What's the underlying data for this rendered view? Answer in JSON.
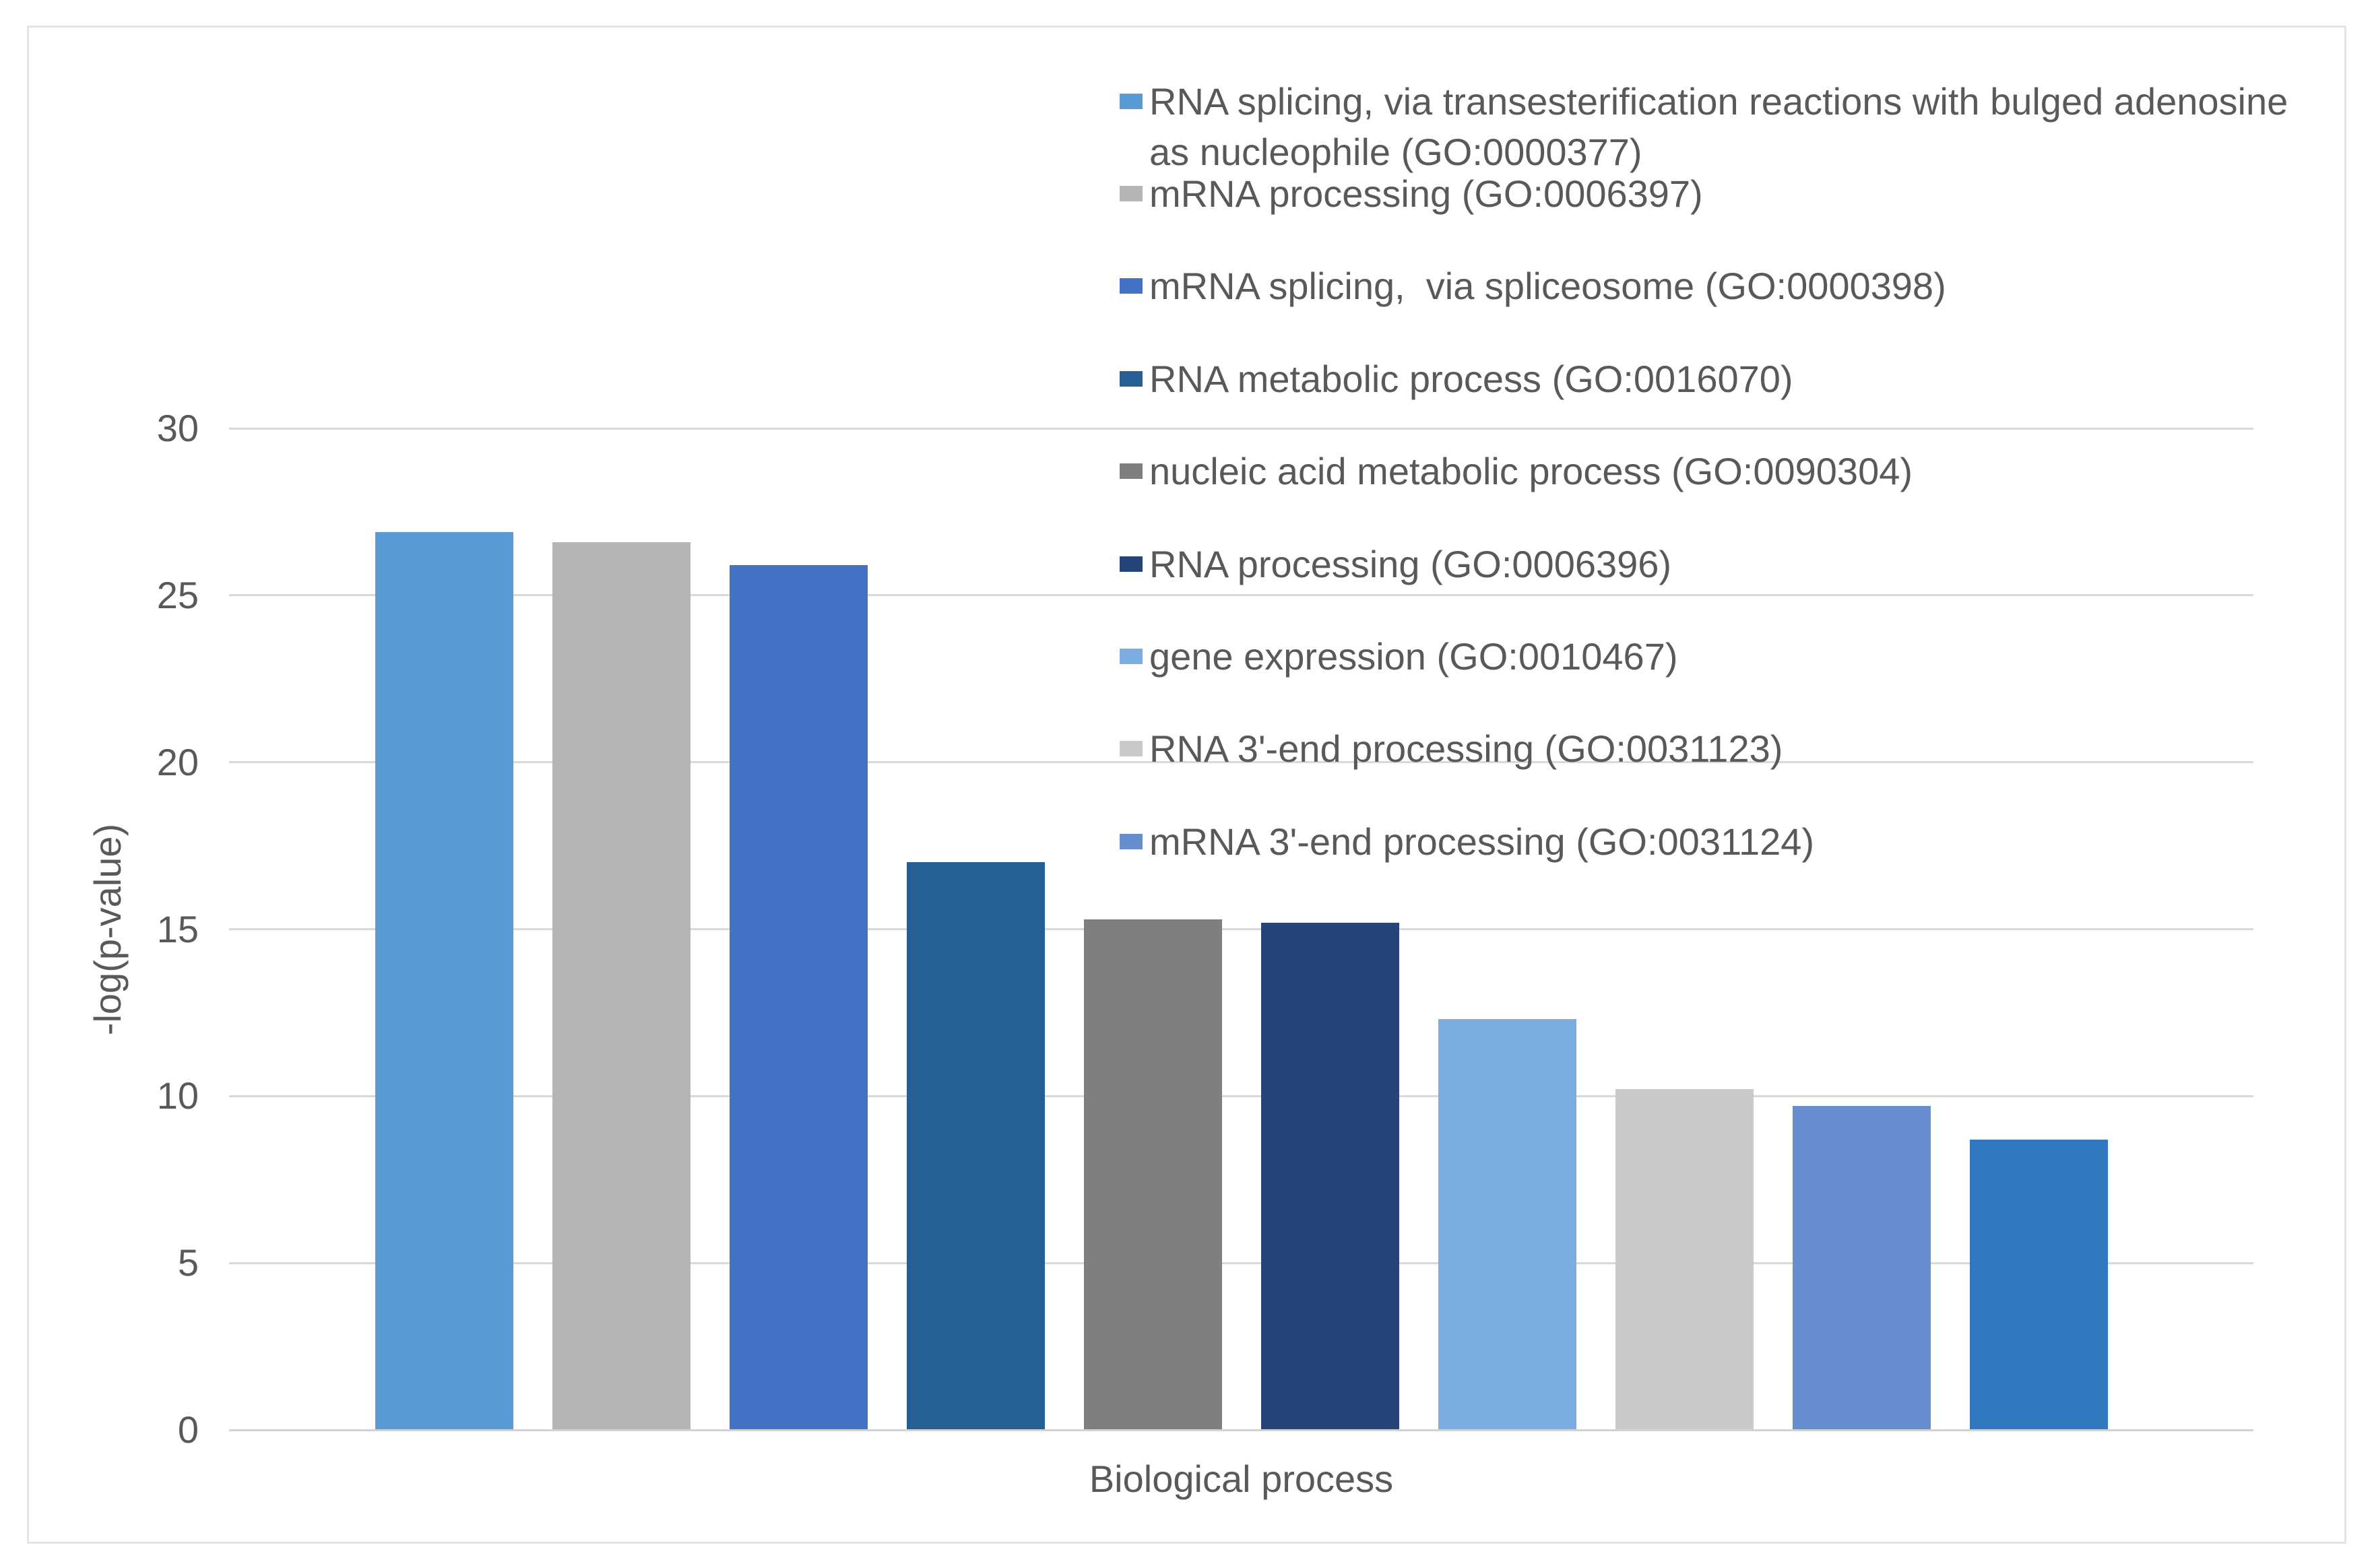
{
  "chart_data": {
    "type": "bar",
    "title": "",
    "xlabel": "Biological process",
    "ylabel": "-log(p-value)",
    "ylim": [
      0,
      30
    ],
    "yticks": [
      30,
      25,
      20,
      15,
      10,
      5,
      0
    ],
    "grid": true,
    "legend_position": "top-right",
    "categories": [
      "RNA splicing, via transesterification reactions with bulged adenosine as nucleophile (GO:0000377)",
      "mRNA processing (GO:0006397)",
      "mRNA splicing,  via spliceosome (GO:0000398)",
      "RNA metabolic process (GO:0016070)",
      "nucleic acid metabolic process (GO:0090304)",
      "RNA processing (GO:0006396)",
      "gene expression (GO:0010467)",
      "RNA 3'-end processing (GO:0031123)",
      "mRNA 3'-end processing (GO:0031124)"
    ],
    "series": [
      {
        "label": "RNA splicing, via transesterification reactions with bulged adenosine as nucleophile (GO:0000377)",
        "value": 26.9,
        "color": "#5B9BD5",
        "in_legend": true
      },
      {
        "label": "mRNA processing (GO:0006397)",
        "value": 26.6,
        "color": "#B5B5B5",
        "in_legend": true
      },
      {
        "label": "mRNA splicing,  via spliceosome (GO:0000398)",
        "value": 25.9,
        "color": "#4472C4",
        "in_legend": true
      },
      {
        "label": "RNA metabolic process (GO:0016070)",
        "value": 17.0,
        "color": "#265F93",
        "in_legend": true
      },
      {
        "label": "nucleic acid metabolic process (GO:0090304)",
        "value": 15.3,
        "color": "#7F7F7F",
        "in_legend": true
      },
      {
        "label": "RNA processing (GO:0006396)",
        "value": 15.2,
        "color": "#264478",
        "in_legend": true
      },
      {
        "label": "gene expression (GO:0010467)",
        "value": 12.3,
        "color": "#7CADE0",
        "in_legend": true
      },
      {
        "label": "RNA 3'-end processing (GO:0031123)",
        "value": 10.2,
        "color": "#C9C9C9",
        "in_legend": true
      },
      {
        "label": "mRNA 3'-end processing (GO:0031124)",
        "value": 9.7,
        "color": "#698ED0",
        "in_legend": true
      },
      {
        "label": null,
        "value": 8.7,
        "color": "#3079BF",
        "in_legend": false
      }
    ],
    "gridline_color": "#D9D9D9",
    "text_color": "#595959"
  }
}
